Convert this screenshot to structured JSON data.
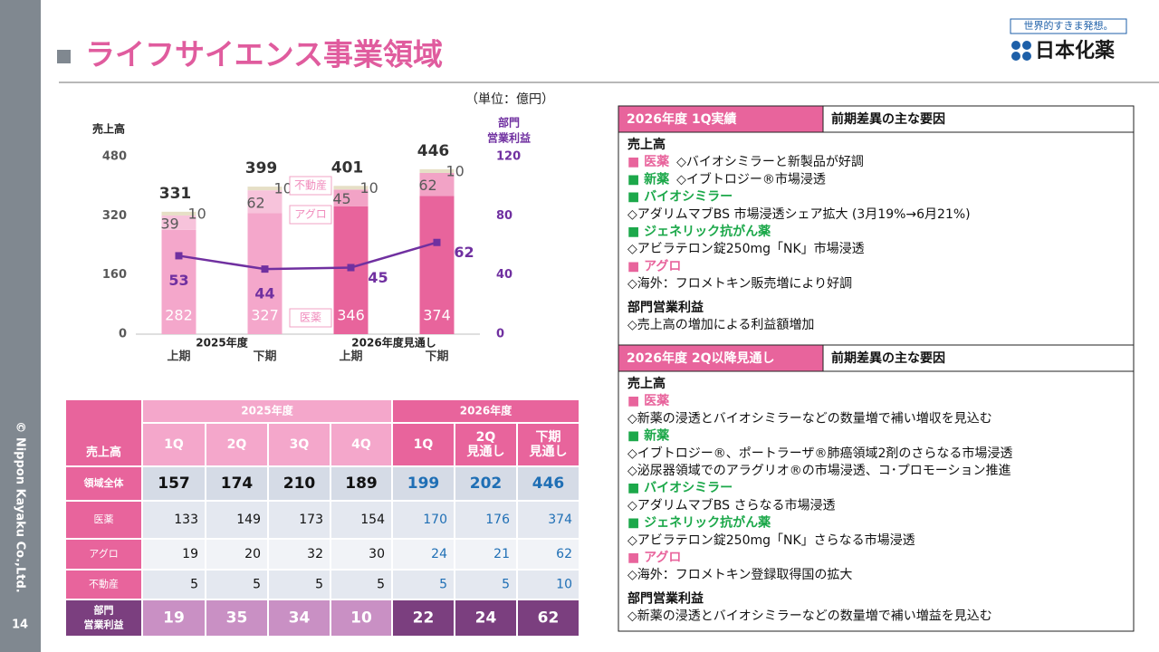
{
  "header": {
    "title": "ライフサイエンス事業領域",
    "copyright": "© Nippon Kayaku Co.,Ltd.",
    "page": "14",
    "logo_tagline": "世界的すきま発想。",
    "logo_name": "日本化薬"
  },
  "chart_data": {
    "type": "bar",
    "stacked": true,
    "unit": "（単位：億円）",
    "y_label": "売上高",
    "y2_label": [
      "部門",
      "営業利益"
    ],
    "categories": [
      "上期",
      "下期",
      "上期",
      "下期"
    ],
    "category_groups": [
      "2025年度",
      "2026年度見通し"
    ],
    "ylim": [
      0,
      480
    ],
    "yticks": [
      0,
      160,
      320,
      480
    ],
    "y2lim": [
      0,
      120
    ],
    "y2ticks": [
      0,
      40,
      80,
      120
    ],
    "totals": [
      331,
      399,
      401,
      446
    ],
    "series": [
      {
        "name": "医薬",
        "colors": [
          "#f4a7cb",
          "#f4a7cb",
          "#e8649c",
          "#e8649c"
        ],
        "values": [
          282,
          327,
          346,
          374
        ]
      },
      {
        "name": "アグロ",
        "colors": [
          "#f7c3db",
          "#f7c3db",
          "#f2a3c6",
          "#f2a3c6"
        ],
        "values": [
          39,
          62,
          45,
          62
        ]
      },
      {
        "name": "不動産",
        "color": "#e6dfc6",
        "values": [
          10,
          10,
          10,
          10
        ]
      },
      {
        "type": "line",
        "axis": "y2",
        "color": "#7030a0",
        "values": [
          53,
          44,
          45,
          62
        ]
      }
    ]
  },
  "table": {
    "corner": "売上高",
    "groups": [
      "2025年度",
      "2026年度"
    ],
    "columns": [
      [
        "1Q"
      ],
      [
        "2Q"
      ],
      [
        "3Q"
      ],
      [
        "4Q"
      ],
      [
        "1Q"
      ],
      [
        "2Q",
        "見通し"
      ],
      [
        "下期",
        "見通し"
      ]
    ],
    "rows": [
      {
        "label": [
          "領域全体"
        ],
        "values": [
          157,
          174,
          210,
          189,
          199,
          202,
          446
        ]
      },
      {
        "label": [
          "医薬"
        ],
        "values": [
          133,
          149,
          173,
          154,
          170,
          176,
          374
        ]
      },
      {
        "label": [
          "アグロ"
        ],
        "values": [
          19,
          20,
          32,
          30,
          24,
          21,
          62
        ]
      },
      {
        "label": [
          "不動産"
        ],
        "values": [
          5,
          5,
          5,
          5,
          5,
          5,
          10
        ]
      },
      {
        "label": [
          "部門",
          "営業利益"
        ],
        "values": [
          19,
          35,
          34,
          10,
          22,
          24,
          62
        ]
      }
    ]
  },
  "panel": {
    "sections": [
      {
        "title": "2026年度 1Q実績",
        "header": "前期差異の主な要因",
        "lines": [
          {
            "style": "heading",
            "text": "売上高"
          },
          {
            "style": "pink",
            "label": "■ 医薬",
            "text": "◇バイオシミラーと新製品が好調"
          },
          {
            "style": "green",
            "label": "■ 新薬",
            "text": "◇イブトロジー®市場浸透"
          },
          {
            "style": "green",
            "label": "■ バイオシミラー"
          },
          {
            "style": "plain",
            "text": "◇アダリムマブBS 市場浸透シェア拡大 (3月19%→6月21%)"
          },
          {
            "style": "green",
            "label": "■ ジェネリック抗がん薬"
          },
          {
            "style": "plain",
            "text": "◇アビラテロン錠250mg「NK」市場浸透"
          },
          {
            "style": "pink",
            "label": "■ アグロ"
          },
          {
            "style": "plain",
            "text": "◇海外：フロメトキン販売増により好調"
          },
          {
            "style": "heading",
            "text": "部門営業利益"
          },
          {
            "style": "plain",
            "text": "◇売上高の増加による利益額増加"
          }
        ]
      },
      {
        "title": "2026年度 2Q以降見通し",
        "header": "前期差異の主な要因",
        "lines": [
          {
            "style": "heading",
            "text": "売上高"
          },
          {
            "style": "pink",
            "label": "■ 医薬"
          },
          {
            "style": "plain",
            "text": "◇新薬の浸透とバイオシミラーなどの数量増で補い増収を見込む"
          },
          {
            "style": "green",
            "label": "■ 新薬"
          },
          {
            "style": "plain",
            "text": "◇イブトロジー®、ポートラーザ®肺癌領域2剤のさらなる市場浸透"
          },
          {
            "style": "plain",
            "text": "◇泌尿器領域でのアラグリオ®の市場浸透、コ･プロモーション推進"
          },
          {
            "style": "green",
            "label": "■ バイオシミラー"
          },
          {
            "style": "plain",
            "text": "◇アダリムマブBS さらなる市場浸透"
          },
          {
            "style": "green",
            "label": "■ ジェネリック抗がん薬"
          },
          {
            "style": "plain",
            "text": "◇アビラテロン錠250mg「NK」さらなる市場浸透"
          },
          {
            "style": "pink",
            "label": "■ アグロ"
          },
          {
            "style": "plain",
            "text": "◇海外：フロメトキン登録取得国の拡大"
          },
          {
            "style": "heading",
            "text": "部門営業利益"
          },
          {
            "style": "plain",
            "text": "◇新薬の浸透とバイオシミラーなどの数量増で補い増益を見込む"
          }
        ]
      }
    ]
  }
}
